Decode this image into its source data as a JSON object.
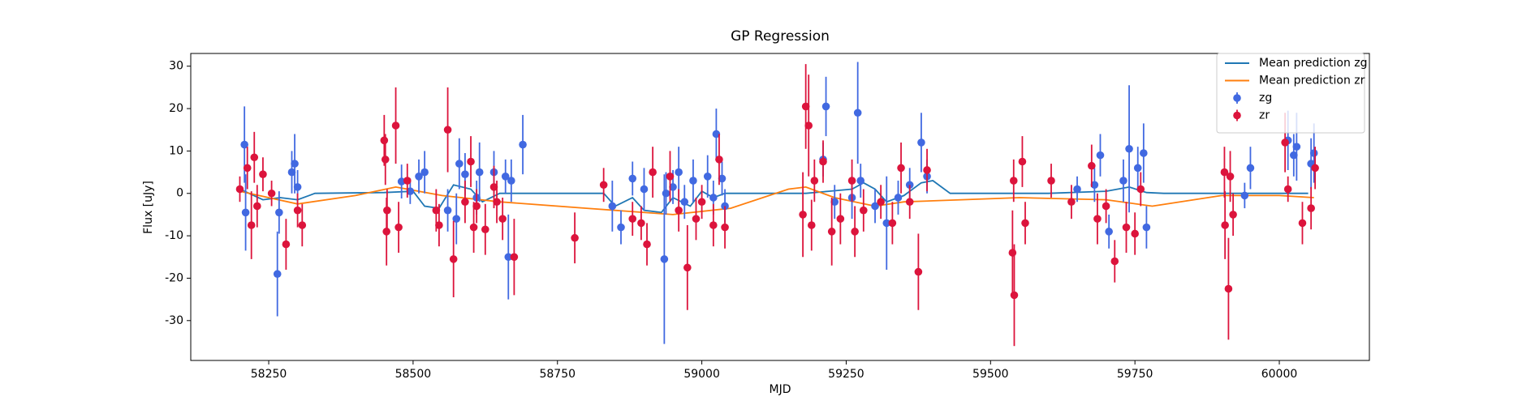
{
  "chart_data": {
    "type": "errorbar",
    "title": "GP Regression",
    "x_label": "MJD",
    "y_label": "Flux [uJy]",
    "xlim": [
      58115,
      60156
    ],
    "ylim": [
      -39.4,
      33.0
    ],
    "xticks": [
      58250,
      58500,
      58750,
      59000,
      59250,
      59500,
      59750,
      60000
    ],
    "yticks": [
      -30,
      -20,
      -10,
      0,
      10,
      20,
      30
    ],
    "legend": "upper right",
    "series": [
      {
        "name": "Mean prediction zg",
        "mode": "line",
        "color": "#1f77b4",
        "x": [
          58200,
          58240,
          58270,
          58300,
          58330,
          58450,
          58500,
          58520,
          58545,
          58570,
          58600,
          58620,
          58650,
          58690,
          58830,
          58850,
          58880,
          58900,
          58930,
          58950,
          58980,
          59000,
          59020,
          59040,
          59180,
          59220,
          59260,
          59280,
          59300,
          59320,
          59350,
          59380,
          59400,
          59430,
          59600,
          59700,
          59740,
          59770,
          59800,
          60050
        ],
        "values": [
          1,
          -1.5,
          -1,
          -1.5,
          0,
          0.2,
          0.5,
          -3,
          -3.5,
          2,
          1,
          -2,
          0,
          0,
          0,
          -3,
          -1,
          -4,
          -4.5,
          -1,
          -3,
          0.5,
          -1,
          0,
          0,
          0.5,
          1,
          2.5,
          1,
          -2,
          -0.5,
          2.5,
          3,
          0,
          0,
          0.5,
          1.5,
          0.2,
          0,
          0
        ]
      },
      {
        "name": "Mean prediction zr",
        "mode": "line",
        "color": "#ff7f0e",
        "x": [
          58200,
          58250,
          58300,
          58400,
          58470,
          58550,
          58650,
          58800,
          58950,
          59050,
          59150,
          59180,
          59230,
          59300,
          59350,
          59450,
          59550,
          59700,
          59780,
          59900,
          60000,
          60060
        ],
        "values": [
          0.5,
          -1,
          -2.5,
          -0.5,
          1.5,
          -0.5,
          -2,
          -3.5,
          -5,
          -3.5,
          1,
          1.5,
          -1,
          -3,
          -2,
          -1.5,
          -1,
          -1.5,
          -3,
          -0.5,
          -0.5,
          -1
        ]
      },
      {
        "name": "zg",
        "mode": "errorbar",
        "color": "#4169e1",
        "x": [
          58208,
          58210,
          58265,
          58268,
          58290,
          58295,
          58300,
          58480,
          58495,
          58510,
          58520,
          58560,
          58575,
          58580,
          58590,
          58610,
          58615,
          58640,
          58660,
          58665,
          58670,
          58690,
          58845,
          58860,
          58880,
          58900,
          58935,
          58938,
          58950,
          58960,
          58970,
          58985,
          59010,
          59020,
          59025,
          59035,
          59040,
          59210,
          59215,
          59230,
          59260,
          59270,
          59275,
          59300,
          59320,
          59340,
          59360,
          59380,
          59390,
          59650,
          59680,
          59690,
          59705,
          59730,
          59740,
          59755,
          59765,
          59770,
          59940,
          59950,
          60015,
          60025,
          60030,
          60055,
          60060
        ],
        "values": [
          11.5,
          -4.5,
          -19,
          -4.5,
          5,
          7,
          1.5,
          2.8,
          0.5,
          4,
          5,
          -4,
          -6,
          7,
          4.5,
          -1,
          5,
          5,
          4,
          -15,
          3,
          11.5,
          -3,
          -8,
          3.5,
          1,
          -15.5,
          0,
          1.5,
          5,
          -2,
          3,
          4,
          -1,
          14,
          3.5,
          -3,
          8,
          20.5,
          -2,
          -1,
          19,
          3,
          -3,
          -7,
          -1,
          2,
          12,
          4,
          1,
          2,
          9,
          -9,
          3,
          10.5,
          6,
          9.5,
          -8,
          -0.5,
          6,
          12.5,
          9,
          11,
          7,
          9.5
        ],
        "errors": [
          9,
          9,
          10,
          5,
          5,
          7,
          4,
          4,
          3,
          4,
          5,
          5,
          6,
          6,
          5,
          4,
          7,
          5,
          4,
          10,
          5,
          7,
          6,
          4,
          4,
          5,
          20,
          5,
          4,
          6,
          4,
          5,
          5,
          4,
          6,
          4,
          4,
          4,
          7,
          4,
          5,
          12,
          4,
          4,
          11,
          4,
          4,
          7,
          4,
          3,
          4,
          5,
          4,
          5,
          15,
          5,
          7,
          5,
          3,
          5,
          7,
          5,
          8,
          6,
          7
        ]
      },
      {
        "name": "zr",
        "mode": "errorbar",
        "color": "#dc143c",
        "x": [
          58200,
          58213,
          58220,
          58225,
          58230,
          58240,
          58255,
          58280,
          58300,
          58308,
          58450,
          58452,
          58454,
          58455,
          58470,
          58475,
          58490,
          58540,
          58545,
          58560,
          58570,
          58590,
          58600,
          58605,
          58610,
          58625,
          58640,
          58645,
          58655,
          58675,
          58780,
          58830,
          58880,
          58895,
          58905,
          58915,
          58945,
          58960,
          58975,
          58990,
          59000,
          59020,
          59030,
          59040,
          59175,
          59180,
          59185,
          59190,
          59195,
          59210,
          59225,
          59240,
          59260,
          59265,
          59280,
          59310,
          59330,
          59345,
          59360,
          59375,
          59390,
          59540,
          59538,
          59541,
          59555,
          59560,
          59605,
          59640,
          59675,
          59685,
          59700,
          59715,
          59735,
          59750,
          59760,
          59905,
          59906,
          59912,
          59915,
          59920,
          60010,
          60015,
          60040,
          60055,
          60062
        ],
        "values": [
          1,
          6,
          -7.5,
          8.5,
          -3,
          4.5,
          0,
          -12,
          -4,
          -7.5,
          12.5,
          8,
          -9,
          -4,
          16,
          -8,
          3,
          -4,
          -7.5,
          15,
          -15.5,
          -2,
          7.5,
          -8,
          -3,
          -8.5,
          1.5,
          -2,
          -6,
          -15,
          -10.5,
          2,
          -6,
          -7,
          -12,
          5,
          4,
          -4,
          -17.5,
          -6,
          -2,
          -7.5,
          8,
          -8,
          -5,
          20.5,
          16,
          -7.5,
          3,
          7.5,
          -9,
          -6,
          3,
          -9,
          -4,
          -2,
          -7,
          6,
          -2,
          -18.5,
          5.5,
          3,
          -14,
          -24,
          7.5,
          -7,
          3,
          -2,
          6.5,
          -6,
          -3,
          -16,
          -8,
          -9.5,
          1,
          5,
          -7.5,
          -22.5,
          4,
          -5,
          12,
          1,
          -7,
          -3.5,
          6
        ],
        "errors": [
          3,
          5,
          8,
          6,
          5,
          4,
          3,
          6,
          4,
          5,
          6,
          6,
          8,
          5,
          9,
          6,
          4,
          5,
          5,
          10,
          9,
          5,
          6,
          6,
          4,
          6,
          5,
          5,
          5,
          9,
          6,
          4,
          4,
          4,
          5,
          6,
          6,
          5,
          10,
          5,
          4,
          5,
          6,
          5,
          10,
          10,
          12,
          6,
          5,
          5,
          8,
          6,
          5,
          6,
          5,
          4,
          5,
          6,
          4,
          9,
          5,
          5,
          10,
          12,
          6,
          5,
          4,
          4,
          5,
          6,
          4,
          5,
          6,
          5,
          4,
          6,
          8,
          12,
          6,
          5,
          7,
          3,
          5,
          5,
          5
        ]
      }
    ]
  }
}
